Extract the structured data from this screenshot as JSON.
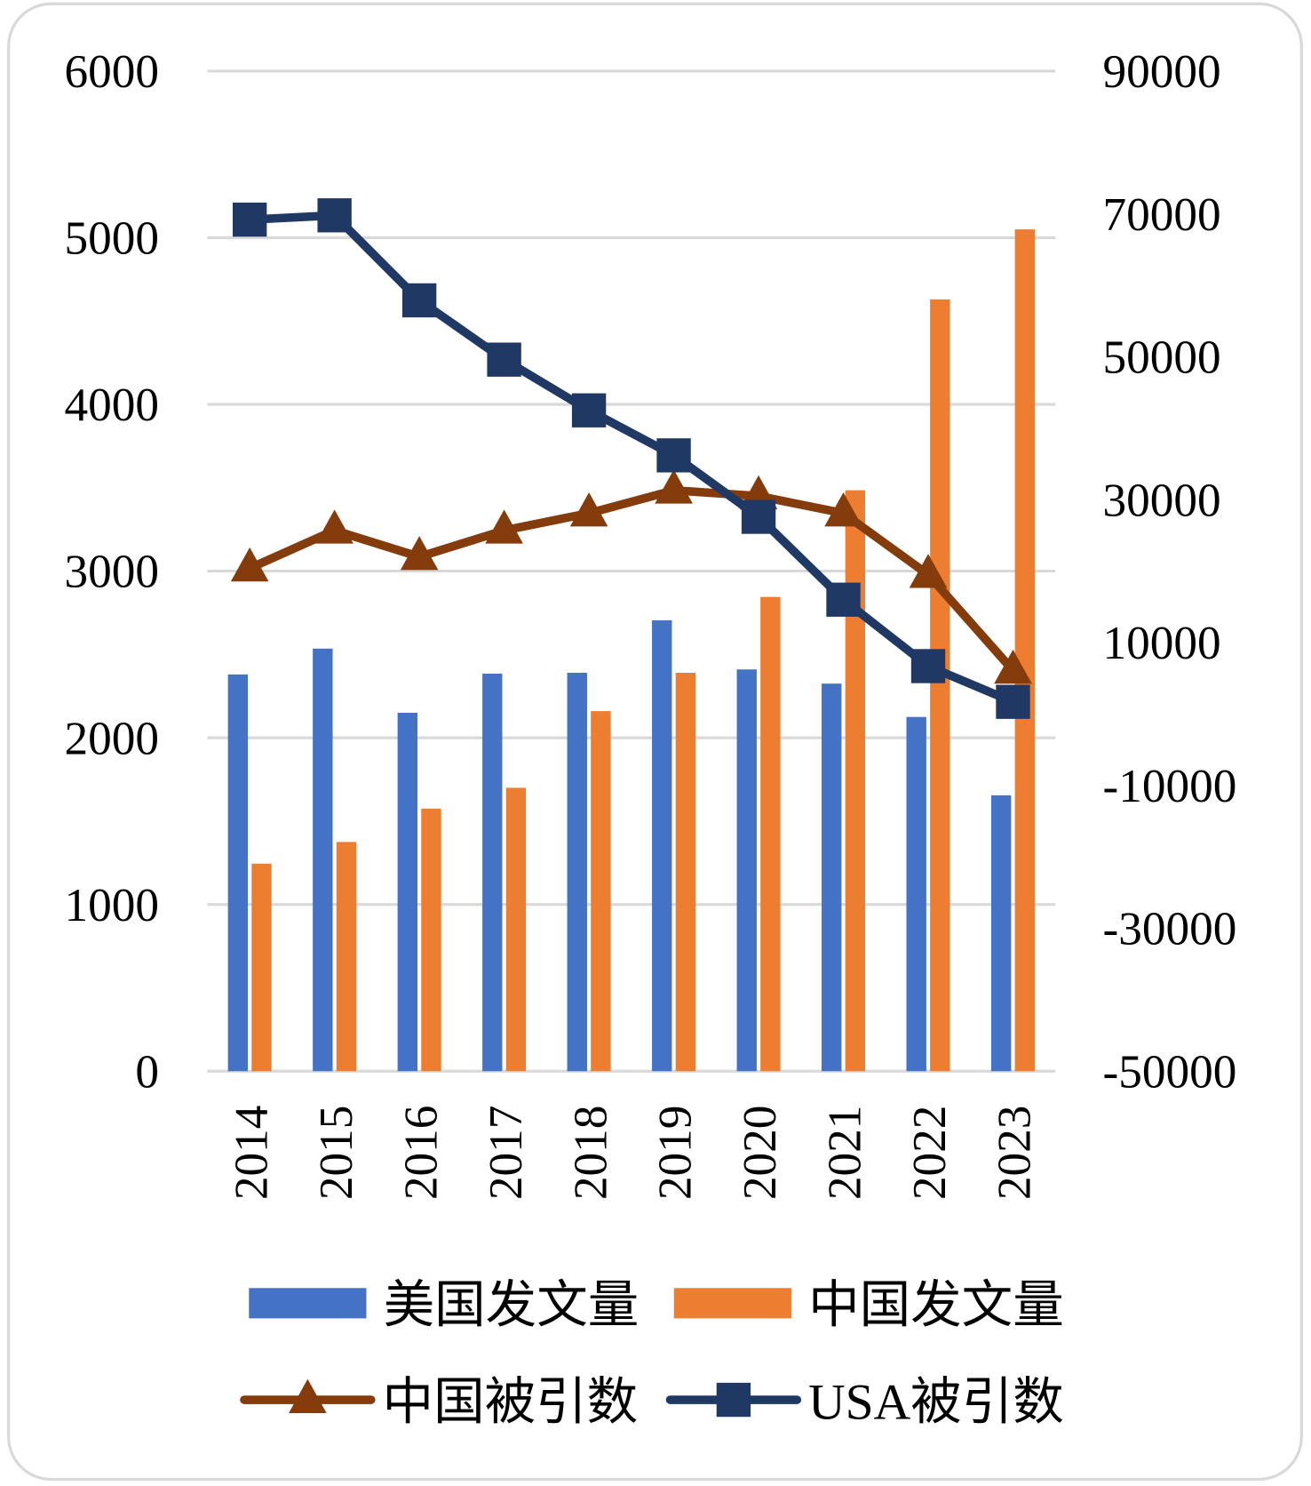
{
  "chart_data": {
    "type": "bar+line",
    "categories": [
      "2014",
      "2015",
      "2016",
      "2017",
      "2018",
      "2019",
      "2020",
      "2021",
      "2022",
      "2023"
    ],
    "left_axis": {
      "ylim": [
        0,
        6000
      ],
      "ticks": [
        "0",
        "1000",
        "2000",
        "3000",
        "4000",
        "5000",
        "6000"
      ]
    },
    "right_axis": {
      "ylim": [
        -50000,
        90000
      ],
      "ticks": [
        "-50000",
        "-30000",
        "-10000",
        "10000",
        "30000",
        "50000",
        "70000",
        "90000"
      ]
    },
    "grid": true,
    "legend_position": "bottom",
    "series": [
      {
        "name": "美国发文量",
        "type": "bar",
        "axis": "left",
        "color": "#4472C4",
        "values": [
          2380,
          2535,
          2150,
          2385,
          2390,
          2705,
          2410,
          2325,
          2125,
          1655
        ]
      },
      {
        "name": "中国发文量",
        "type": "bar",
        "axis": "left",
        "color": "#ED7D31",
        "values": [
          1245,
          1375,
          1575,
          1700,
          2160,
          2390,
          2845,
          3485,
          4630,
          5050
        ]
      },
      {
        "name": "中国被引数",
        "type": "line",
        "marker": "triangle",
        "axis": "right",
        "color": "#843C0C",
        "values": [
          20400,
          25700,
          22000,
          25700,
          28100,
          31300,
          30500,
          28100,
          19500,
          6100
        ]
      },
      {
        "name": "USA被引数",
        "type": "line",
        "marker": "square",
        "axis": "right",
        "color": "#203864",
        "values": [
          69200,
          69800,
          57900,
          49600,
          42500,
          36200,
          27600,
          16000,
          6700,
          1700
        ]
      }
    ]
  }
}
